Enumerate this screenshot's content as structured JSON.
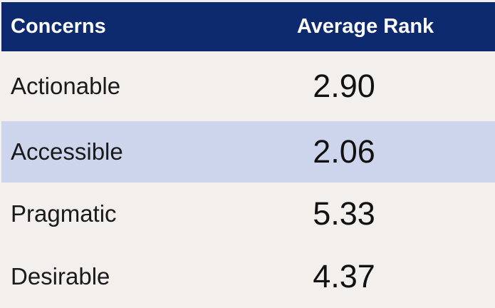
{
  "colors": {
    "page_background": "#f2efed",
    "header_background": "#0d2a6e",
    "header_text": "#ffffff",
    "highlight_row_background": "#ccd5ec",
    "body_text": "#1a1a1a"
  },
  "table": {
    "header": {
      "concerns_label": "Concerns",
      "average_rank_label": "Average Rank"
    },
    "rows": [
      {
        "concern": "Actionable",
        "average_rank": "2.90",
        "highlighted": false
      },
      {
        "concern": "Accessible",
        "average_rank": "2.06",
        "highlighted": true
      },
      {
        "concern": "Pragmatic",
        "average_rank": "5.33",
        "highlighted": false
      },
      {
        "concern": "Desirable",
        "average_rank": "4.37",
        "highlighted": false
      }
    ]
  },
  "chart_data": {
    "type": "table",
    "columns": [
      "Concerns",
      "Average Rank"
    ],
    "rows": [
      [
        "Actionable",
        2.9
      ],
      [
        "Accessible",
        2.06
      ],
      [
        "Pragmatic",
        5.33
      ],
      [
        "Desirable",
        4.37
      ]
    ],
    "highlighted_row": "Accessible",
    "layout": {
      "header_style": "dark-navy, white bold text",
      "highlight_style": "light periwinkle row fill",
      "grid": "off"
    }
  }
}
